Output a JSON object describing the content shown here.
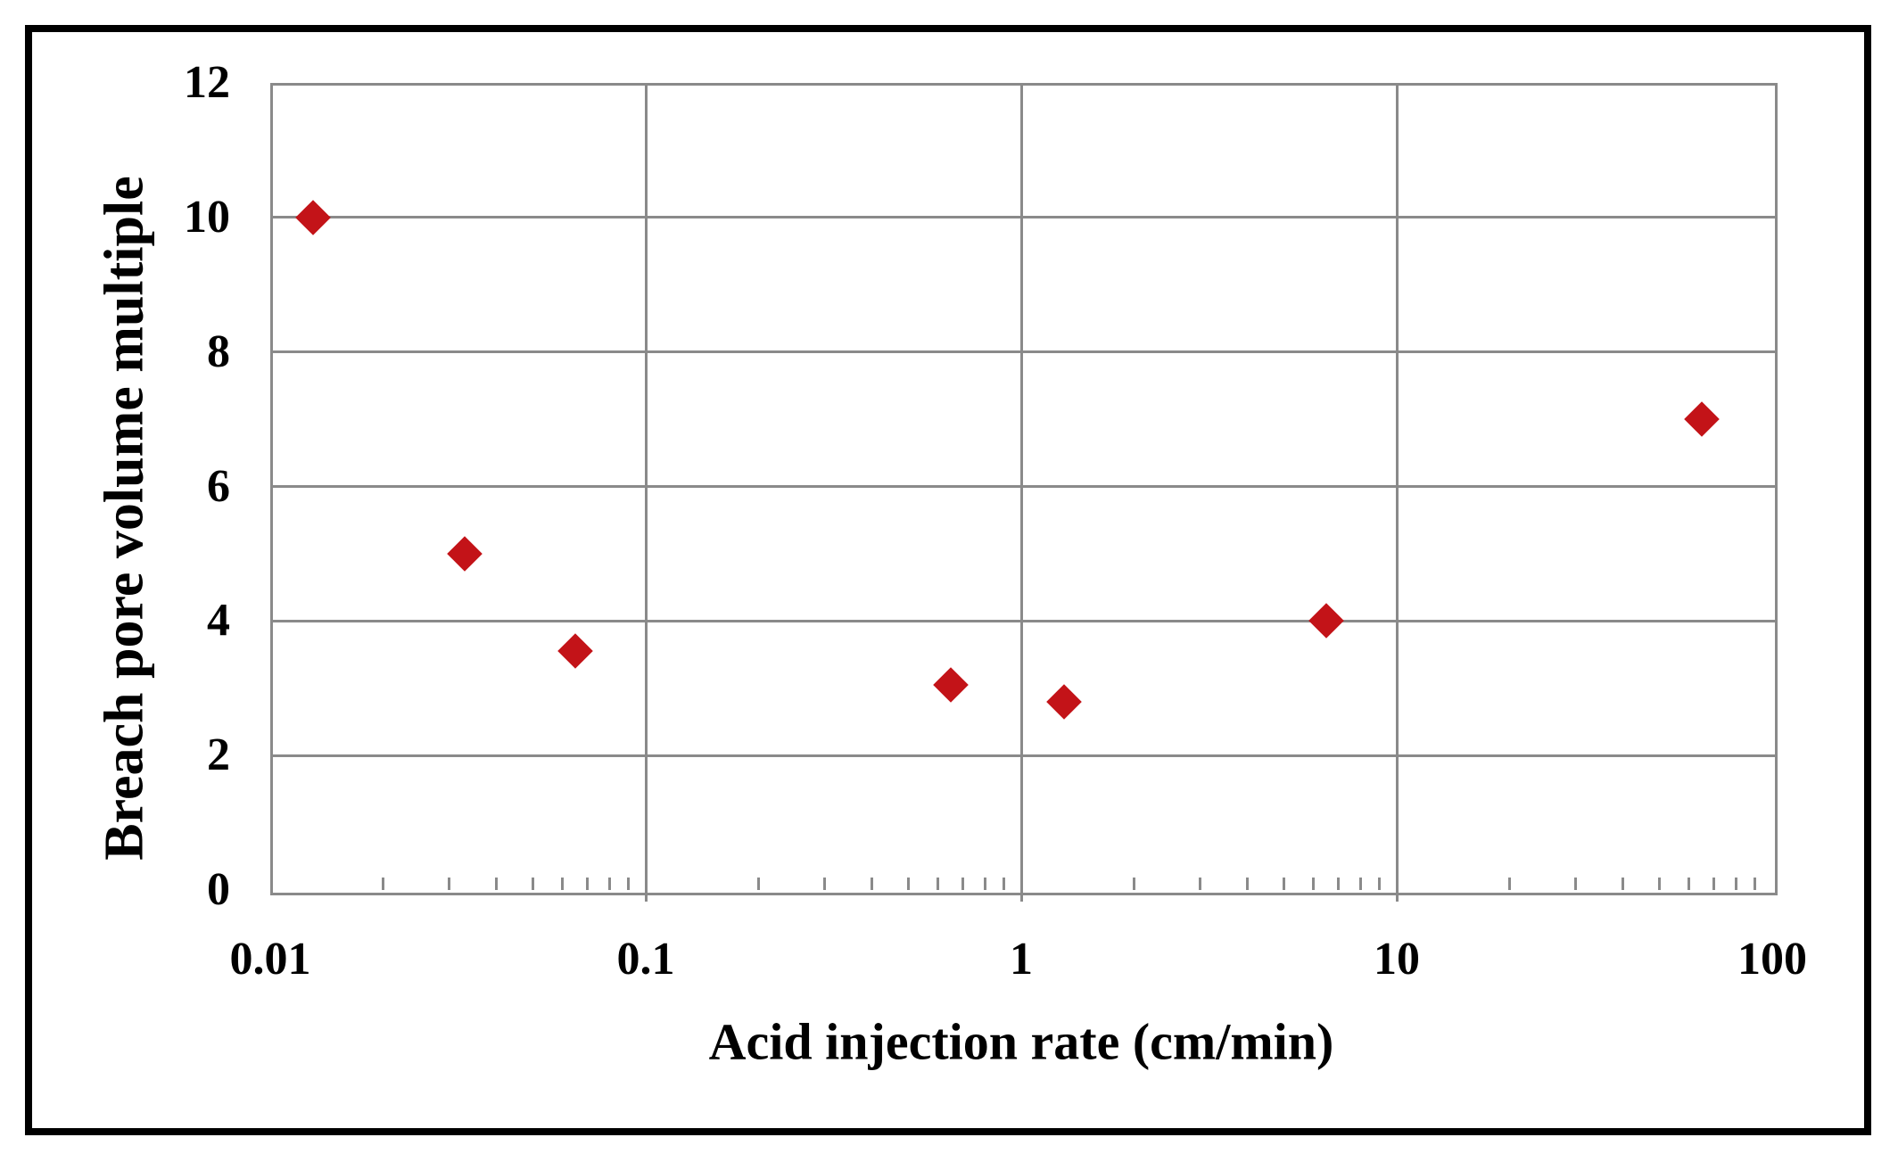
{
  "colors": {
    "background": "#FFFFFF",
    "figure_border": "#000000",
    "gridline": "#8A8A8A",
    "marker": "#C31318",
    "text": "#000000"
  },
  "chart_data": {
    "type": "scatter",
    "title": "",
    "xlabel": "Acid injection rate (cm/min)",
    "ylabel": "Breach pore volume multiple",
    "x_scale": "log",
    "xlim": [
      0.01,
      100
    ],
    "ylim": [
      0,
      12
    ],
    "grid": true,
    "legend_position": "none",
    "x_ticks": [
      {
        "value": 0.01,
        "label": "0.01"
      },
      {
        "value": 0.1,
        "label": "0.1"
      },
      {
        "value": 1,
        "label": "1"
      },
      {
        "value": 10,
        "label": "10"
      },
      {
        "value": 100,
        "label": "100"
      }
    ],
    "y_ticks": [
      {
        "value": 12,
        "label": "12"
      },
      {
        "value": 10,
        "label": "10"
      },
      {
        "value": 8,
        "label": "8"
      },
      {
        "value": 6,
        "label": "6"
      },
      {
        "value": 4,
        "label": "4"
      },
      {
        "value": 2,
        "label": "2"
      },
      {
        "value": 0,
        "label": "0"
      }
    ],
    "x_minor_tick_decades": [
      0.01,
      0.1,
      1,
      10
    ],
    "series": [
      {
        "marker": "diamond",
        "color": "#C31318",
        "points": [
          {
            "x": 0.013,
            "y": 10.0
          },
          {
            "x": 0.033,
            "y": 5.0
          },
          {
            "x": 0.065,
            "y": 3.55
          },
          {
            "x": 0.65,
            "y": 3.05
          },
          {
            "x": 1.3,
            "y": 2.8
          },
          {
            "x": 6.5,
            "y": 4.0
          },
          {
            "x": 65,
            "y": 7.0
          }
        ]
      }
    ]
  }
}
